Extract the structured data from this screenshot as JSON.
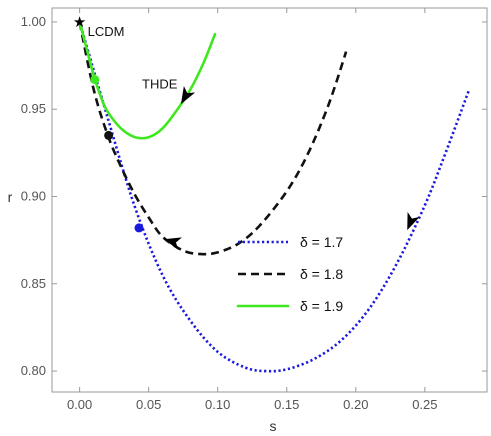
{
  "chart_data": {
    "type": "line",
    "title": "",
    "xlabel": "s",
    "ylabel": "r",
    "xlim": [
      -0.02,
      0.295
    ],
    "ylim": [
      0.788,
      1.008
    ],
    "x_ticks": [
      0.0,
      0.05,
      0.1,
      0.15,
      0.2,
      0.25
    ],
    "x_tick_labels": [
      "0.00",
      "0.05",
      "0.10",
      "0.15",
      "0.20",
      "0.25"
    ],
    "y_ticks": [
      0.8,
      0.85,
      0.9,
      0.95,
      1.0
    ],
    "y_tick_labels": [
      "0.80",
      "0.85",
      "0.90",
      "0.95",
      "1.00"
    ],
    "grid": false,
    "legend_position": "center-right",
    "annotations": [
      {
        "text": "LCDM",
        "x": 0.0,
        "y": 1.0,
        "marker": "star"
      },
      {
        "text": "THDE",
        "x": 0.058,
        "y": 0.962
      }
    ],
    "series": [
      {
        "name": "δ = 1.7",
        "color": "#1a1adc",
        "style": "dotted",
        "points": [
          [
            0.0,
            1.0
          ],
          [
            0.02,
            0.946
          ],
          [
            0.04,
            0.894
          ],
          [
            0.06,
            0.855
          ],
          [
            0.08,
            0.829
          ],
          [
            0.1,
            0.811
          ],
          [
            0.12,
            0.802
          ],
          [
            0.135,
            0.8
          ],
          [
            0.15,
            0.801
          ],
          [
            0.17,
            0.807
          ],
          [
            0.19,
            0.818
          ],
          [
            0.21,
            0.836
          ],
          [
            0.23,
            0.862
          ],
          [
            0.25,
            0.895
          ],
          [
            0.265,
            0.925
          ],
          [
            0.282,
            0.961
          ]
        ],
        "current_point": [
          0.043,
          0.882
        ],
        "arrow_at": [
          0.24,
          0.886
        ],
        "arrow_direction": "down"
      },
      {
        "name": "δ = 1.8",
        "color": "#111111",
        "style": "dashed",
        "points": [
          [
            0.0,
            1.0
          ],
          [
            0.01,
            0.962
          ],
          [
            0.02,
            0.936
          ],
          [
            0.03,
            0.917
          ],
          [
            0.04,
            0.901
          ],
          [
            0.05,
            0.888
          ],
          [
            0.06,
            0.877
          ],
          [
            0.075,
            0.869
          ],
          [
            0.088,
            0.867
          ],
          [
            0.1,
            0.868
          ],
          [
            0.115,
            0.873
          ],
          [
            0.13,
            0.883
          ],
          [
            0.15,
            0.903
          ],
          [
            0.165,
            0.924
          ],
          [
            0.18,
            0.952
          ],
          [
            0.193,
            0.983
          ]
        ],
        "current_point": [
          0.021,
          0.935
        ],
        "arrow_at": [
          0.068,
          0.874
        ],
        "arrow_direction": "left"
      },
      {
        "name": "δ = 1.9",
        "color": "#3ee81e",
        "style": "solid",
        "points": [
          [
            0.0,
            1.0
          ],
          [
            0.005,
            0.985
          ],
          [
            0.01,
            0.97
          ],
          [
            0.015,
            0.958
          ],
          [
            0.02,
            0.949
          ],
          [
            0.03,
            0.939
          ],
          [
            0.04,
            0.934
          ],
          [
            0.05,
            0.934
          ],
          [
            0.06,
            0.939
          ],
          [
            0.07,
            0.949
          ],
          [
            0.08,
            0.961
          ],
          [
            0.09,
            0.977
          ],
          [
            0.098,
            0.993
          ]
        ],
        "current_point": [
          0.011,
          0.967
        ],
        "arrow_at": [
          0.077,
          0.958
        ],
        "arrow_direction": "down-left"
      }
    ]
  }
}
